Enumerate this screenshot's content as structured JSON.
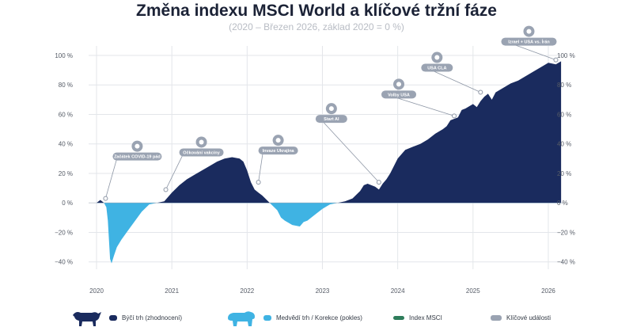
{
  "title": "Změna indexu MSCI World a klíčové tržní fáze",
  "subtitle": "(2020 – Březen 2026, základ 2020 = 0 %)",
  "colors": {
    "bull": "#1a2b5e",
    "bear": "#3fb3e3",
    "msci": "#2e7d5b",
    "event": "#9aa3b2",
    "event_text": "#ffffff",
    "grid": "#e3e6ea"
  },
  "legend": {
    "bull": "Býčí trh (zhodnocení)",
    "bear": "Medvědí trh / Korekce (pokles)",
    "msci": "Index MSCI",
    "events": "Klíčové události",
    "bull_icon": "bull-icon",
    "bear_icon": "bear-icon"
  },
  "chart_data": {
    "type": "area",
    "xlabel": "",
    "ylabel": "",
    "xlim": [
      2020.0,
      2026.2
    ],
    "ylim": [
      -45,
      100
    ],
    "x_ticks": [
      "2020",
      "2021",
      "2022",
      "2023",
      "2024",
      "2025",
      "2026"
    ],
    "x_tick_values": [
      2020,
      2021,
      2022,
      2023,
      2024,
      2025,
      2026
    ],
    "y_ticks_left": [
      "100 %",
      "80 %",
      "60 %",
      "40 %",
      "20 %",
      "0 %",
      "−20 %",
      "−40 %"
    ],
    "y_ticks_right": [
      "100 %",
      "80 %",
      "60 %",
      "40 %",
      "20 %",
      "0 %",
      "−20 %",
      "−40 %"
    ],
    "y_tick_values": [
      100,
      80,
      60,
      40,
      20,
      0,
      -20,
      -40
    ],
    "series": [
      {
        "x": [
          2020.0,
          2020.05,
          2020.1,
          2020.13,
          2020.15,
          2020.18,
          2020.2,
          2020.23,
          2020.27,
          2020.33,
          2020.4,
          2020.5,
          2020.6,
          2020.7,
          2020.8,
          2020.9,
          2020.95,
          2021.0,
          2021.1,
          2021.2,
          2021.3,
          2021.4,
          2021.5,
          2021.6,
          2021.7,
          2021.8,
          2021.9,
          2021.95,
          2022.0,
          2022.05,
          2022.1,
          2022.15,
          2022.2,
          2022.3,
          2022.4,
          2022.45,
          2022.5,
          2022.6,
          2022.7,
          2022.75,
          2022.8,
          2022.9,
          2023.0,
          2023.1,
          2023.2,
          2023.3,
          2023.4,
          2023.5,
          2023.55,
          2023.6,
          2023.7,
          2023.75,
          2023.8,
          2023.85,
          2023.9,
          2024.0,
          2024.1,
          2024.2,
          2024.3,
          2024.4,
          2024.5,
          2024.6,
          2024.65,
          2024.7,
          2024.8,
          2024.85,
          2024.9,
          2025.0,
          2025.05,
          2025.1,
          2025.15,
          2025.2,
          2025.25,
          2025.3,
          2025.4,
          2025.5,
          2025.6,
          2025.7,
          2025.8,
          2025.9,
          2026.0,
          2026.1,
          2026.17
        ],
        "y": [
          0,
          2,
          0,
          -3,
          -12,
          -38,
          -41,
          -36,
          -30,
          -25,
          -20,
          -13,
          -6,
          -1,
          0,
          1,
          4,
          7,
          12,
          16,
          19,
          22,
          25,
          28,
          30,
          31,
          30,
          28,
          22,
          14,
          9,
          7,
          5,
          0,
          -5,
          -10,
          -12,
          -15,
          -16,
          -13,
          -12,
          -8,
          -4,
          -1,
          0,
          1,
          3,
          8,
          12,
          13,
          11,
          9,
          13,
          16,
          20,
          30,
          36,
          38,
          40,
          43,
          47,
          50,
          52,
          56,
          58,
          63,
          64,
          67,
          65,
          69,
          72,
          74,
          70,
          75,
          78,
          81,
          83,
          86,
          89,
          92,
          95,
          94,
          96
        ]
      }
    ],
    "events": [
      {
        "label": "Začátek COVID-19 pád",
        "x": 2020.12,
        "y": 3,
        "icon": "virus-icon"
      },
      {
        "label": "Očkování vakcíny",
        "x": 2020.92,
        "y": 9,
        "icon": "syringe-icon"
      },
      {
        "label": "Invaze Ukrajina",
        "x": 2022.15,
        "y": 14,
        "icon": "tank-icon"
      },
      {
        "label": "Start AI",
        "x": 2023.75,
        "y": 14,
        "icon": "ai-chip-icon"
      },
      {
        "label": "Volby USA",
        "x": 2024.75,
        "y": 59,
        "icon": "ballot-icon"
      },
      {
        "label": "USA CLA",
        "x": 2025.1,
        "y": 75,
        "icon": "document-icon"
      },
      {
        "label": "Izrael + USA vs. Írán",
        "x": 2026.1,
        "y": 97,
        "icon": "missile-icon"
      }
    ]
  }
}
